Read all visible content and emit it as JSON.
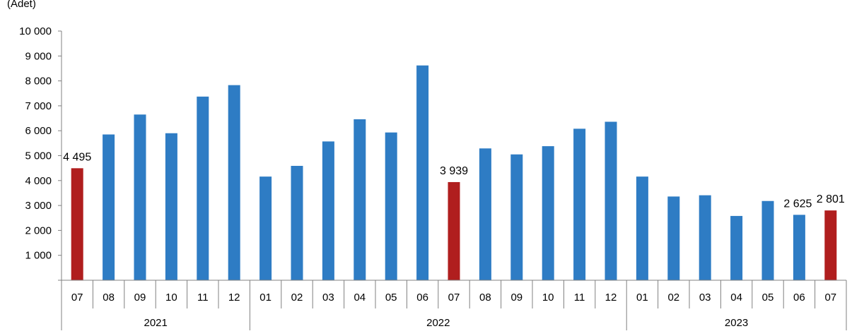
{
  "chart_data": {
    "type": "bar",
    "unit_label": "(Adet)",
    "categories": [
      "07",
      "08",
      "09",
      "10",
      "11",
      "12",
      "01",
      "02",
      "03",
      "04",
      "05",
      "06",
      "07",
      "08",
      "09",
      "10",
      "11",
      "12",
      "01",
      "02",
      "03",
      "04",
      "05",
      "06",
      "07"
    ],
    "values": [
      4495,
      5850,
      6650,
      5900,
      7370,
      7830,
      4160,
      4590,
      5570,
      6460,
      5930,
      8620,
      3939,
      5290,
      5050,
      5380,
      6080,
      6360,
      4160,
      3360,
      3410,
      2580,
      3180,
      2625,
      2801
    ],
    "highlight_indices": [
      0,
      12,
      24
    ],
    "data_labels": [
      {
        "index": 0,
        "text": "4 495"
      },
      {
        "index": 12,
        "text": "3 939"
      },
      {
        "index": 23,
        "text": "2 625"
      },
      {
        "index": 24,
        "text": "2 801"
      }
    ],
    "groups": [
      {
        "label": "2021",
        "start": 0,
        "end": 5
      },
      {
        "label": "2022",
        "start": 6,
        "end": 17
      },
      {
        "label": "2023",
        "start": 18,
        "end": 24
      }
    ],
    "ylim": [
      0,
      10000
    ],
    "yticks": [
      0,
      1000,
      2000,
      3000,
      4000,
      5000,
      6000,
      7000,
      8000,
      9000,
      10000
    ],
    "ytick_labels": [
      "",
      "1 000",
      "2 000",
      "3 000",
      "4 000",
      "5 000",
      "6 000",
      "7 000",
      "8 000",
      "9 000",
      "10 000"
    ],
    "colors": {
      "bar": "#2E7CC4",
      "highlight": "#B01E1E",
      "axis": "#808080"
    },
    "grid": false,
    "legend": "none"
  }
}
